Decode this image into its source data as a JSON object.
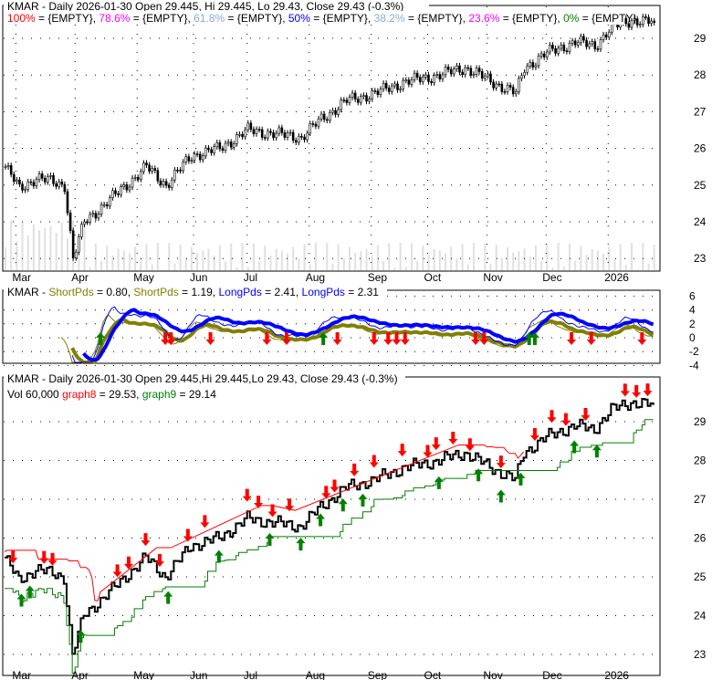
{
  "chart_data": [
    {
      "type": "candlestick",
      "panel": "price",
      "title": "KMAR - Daily 2026-01-30 Open 29.445, Hi 29.445, Lo 29.43, Close 29.43 (-0.3%)",
      "fib_legend": [
        {
          "label": "100%",
          "value": "{EMPTY}",
          "color": "#ff0000"
        },
        {
          "label": "78.6%",
          "value": "{EMPTY}",
          "color": "#ff00ff"
        },
        {
          "label": "61.8%",
          "value": "{EMPTY}",
          "color": "#8fa8d8"
        },
        {
          "label": "50%",
          "value": "{EMPTY}",
          "color": "#0000ff"
        },
        {
          "label": "38.2%",
          "value": "{EMPTY}",
          "color": "#8fa8d8"
        },
        {
          "label": "23.6%",
          "value": "{EMPTY}",
          "color": "#ff00ff"
        },
        {
          "label": "0%",
          "value": "{EMPTY}",
          "color": "#008000"
        }
      ],
      "y_ticks": [
        "29",
        "28",
        "27",
        "26",
        "25",
        "24",
        "23"
      ],
      "ylim": [
        22.6,
        30.0
      ],
      "x_ticks": [
        "Mar",
        "Apr",
        "May",
        "Jun",
        "Jul",
        "Aug",
        "Sep",
        "Oct",
        "Nov",
        "Dec",
        "2026"
      ],
      "x_tick_days": [
        4,
        25,
        47,
        67,
        86,
        108,
        130,
        150,
        171,
        192,
        214
      ],
      "close_anchors": [
        [
          0,
          25.5
        ],
        [
          5,
          24.9
        ],
        [
          11,
          25.2
        ],
        [
          21,
          25.0
        ],
        [
          24,
          23.0
        ],
        [
          28,
          24.0
        ],
        [
          34,
          24.4
        ],
        [
          40,
          24.8
        ],
        [
          50,
          25.5
        ],
        [
          57,
          25.0
        ],
        [
          66,
          25.8
        ],
        [
          76,
          26.0
        ],
        [
          86,
          26.5
        ],
        [
          95,
          26.4
        ],
        [
          105,
          26.3
        ],
        [
          112,
          26.8
        ],
        [
          121,
          27.3
        ],
        [
          131,
          27.5
        ],
        [
          141,
          27.8
        ],
        [
          154,
          28.0
        ],
        [
          163,
          28.2
        ],
        [
          173,
          27.8
        ],
        [
          181,
          27.5
        ],
        [
          184,
          28.2
        ],
        [
          192,
          28.6
        ],
        [
          202,
          28.9
        ],
        [
          209,
          28.8
        ],
        [
          215,
          29.3
        ],
        [
          222,
          29.5
        ],
        [
          230,
          29.43
        ]
      ]
    },
    {
      "type": "line",
      "panel": "indicator",
      "legend": [
        {
          "name": "KMAR",
          "color": "#000000"
        },
        {
          "name": "ShortPds",
          "value": "0.80",
          "color": "#808000"
        },
        {
          "name": "ShortPds",
          "value": "1.19",
          "color": "#808000"
        },
        {
          "name": "LongPds",
          "value": "2.41",
          "color": "#0000ff"
        },
        {
          "name": "LongPds",
          "value": "2.31",
          "color": "#0000ff"
        }
      ],
      "y_ticks": [
        "6",
        "4",
        "2",
        "0",
        "-2",
        "-4"
      ],
      "ylim": [
        -5.5,
        6.5
      ],
      "down_arrow_days": [
        57,
        59,
        73,
        93,
        100,
        118,
        131,
        136,
        139,
        142,
        167,
        170,
        201,
        208,
        226
      ],
      "up_arrow_days": [
        34,
        113,
        186,
        188
      ]
    },
    {
      "type": "candlestick",
      "panel": "price-stops",
      "title": "KMAR - Daily 2026-01-30 Open 29.445,Hi 29.445,Lo 29.43, Close 29.43 (-0.3%)",
      "legend": [
        {
          "name": "Vol 60,000",
          "color": "#000000"
        },
        {
          "name": "graph8",
          "value": "29.53",
          "color": "#ff0000"
        },
        {
          "name": "graph9",
          "value": "29.14",
          "color": "#008000"
        }
      ],
      "y_ticks": [
        "29",
        "28",
        "27",
        "26",
        "25",
        "24",
        "23"
      ],
      "ylim": [
        22.6,
        30.2
      ],
      "x_ticks": [
        "Mar",
        "Apr",
        "May",
        "Jun",
        "Jul",
        "Aug",
        "Sep",
        "Oct",
        "Nov",
        "Dec",
        "2026"
      ],
      "down_arrow_days": [
        3,
        14,
        17,
        40,
        44,
        50,
        55,
        65,
        71,
        86,
        90,
        95,
        101,
        114,
        117,
        124,
        131,
        141,
        150,
        153,
        159,
        165,
        176,
        188,
        194,
        199,
        206,
        220,
        224,
        228
      ],
      "up_arrow_days": [
        6,
        9,
        27,
        58,
        76,
        94,
        105,
        112,
        120,
        127,
        154,
        168,
        176,
        183,
        202,
        210
      ]
    }
  ]
}
